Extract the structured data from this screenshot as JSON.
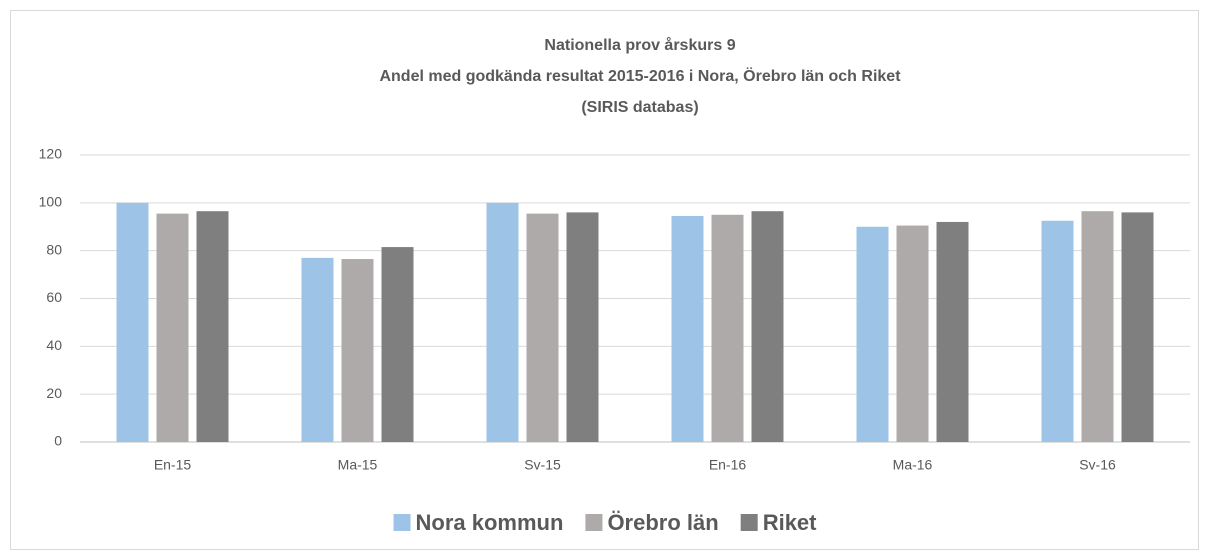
{
  "chart_data": {
    "type": "bar",
    "title_lines": [
      "Nationella prov årskurs 9",
      "Andel med godkända resultat 2015-2016 i Nora, Örebro län och Riket",
      "(SIRIS databas)"
    ],
    "categories": [
      "En-15",
      "Ma-15",
      "Sv-15",
      "En-16",
      "Ma-16",
      "Sv-16"
    ],
    "series": [
      {
        "name": "Nora kommun",
        "color": "#9dc3e6",
        "values": [
          100,
          77,
          100,
          94.5,
          90,
          92.5
        ]
      },
      {
        "name": "Örebro län",
        "color": "#aeaaaa",
        "values": [
          95.5,
          76.5,
          95.5,
          95,
          90.5,
          96.5
        ]
      },
      {
        "name": "Riket",
        "color": "#7f7f7f",
        "values": [
          96.5,
          81.5,
          96,
          96.5,
          92,
          96
        ]
      }
    ],
    "ylim": [
      0,
      120
    ],
    "yticks": [
      0,
      20,
      40,
      60,
      80,
      100,
      120
    ],
    "grid": true,
    "legend": "bottom"
  }
}
